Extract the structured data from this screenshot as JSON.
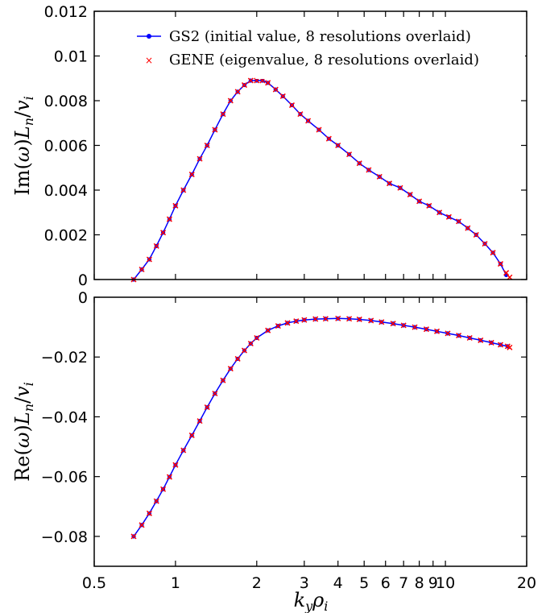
{
  "chart_data": [
    {
      "type": "line",
      "ylabel": "Im(ω)L_n/v_i",
      "xscale": "log",
      "xlim": [
        0.5,
        20
      ],
      "ylim": [
        0,
        0.012
      ],
      "xticks": [
        0.5,
        1,
        2,
        3,
        4,
        5,
        6,
        7,
        8,
        9,
        10,
        20
      ],
      "xtick_labels": [
        "0.5",
        "1",
        "2",
        "3",
        "4",
        "5",
        "6",
        "7",
        "8",
        "9",
        "10",
        "20"
      ],
      "yticks": [
        0,
        0.002,
        0.004,
        0.006,
        0.008,
        0.01,
        0.012
      ],
      "ytick_labels": [
        "0",
        "0.002",
        "0.004",
        "0.006",
        "0.008",
        "0.01",
        "0.012"
      ],
      "legend": {
        "position": "top-right",
        "entries": [
          {
            "label": "GS2 (initial value, 8 resolutions overlaid)",
            "color": "#0000ff",
            "marker": "dot-line"
          },
          {
            "label": "GENE (eigenvalue, 8 resolutions overlaid)",
            "color": "#ff0000",
            "marker": "x"
          }
        ]
      },
      "series": [
        {
          "name": "GS2 (initial value, 8 resolutions overlaid)",
          "color": "#0000ff",
          "x": [
            0.7,
            0.75,
            0.8,
            0.85,
            0.9,
            0.95,
            1.0,
            1.07,
            1.15,
            1.23,
            1.31,
            1.4,
            1.5,
            1.6,
            1.7,
            1.8,
            1.9,
            2.0,
            2.1,
            2.2,
            2.35,
            2.5,
            2.7,
            2.9,
            3.1,
            3.4,
            3.7,
            4.0,
            4.4,
            4.8,
            5.2,
            5.7,
            6.2,
            6.8,
            7.4,
            8.0,
            8.7,
            9.5,
            10.3,
            11.2,
            12.1,
            13.0,
            14.0,
            15.0,
            16.0,
            16.8
          ],
          "y": [
            0.0,
            0.00045,
            0.0009,
            0.0015,
            0.0021,
            0.0027,
            0.0033,
            0.004,
            0.0047,
            0.0054,
            0.006,
            0.0067,
            0.0074,
            0.008,
            0.0084,
            0.0087,
            0.0089,
            0.0089,
            0.0089,
            0.0088,
            0.0085,
            0.0082,
            0.0078,
            0.0074,
            0.0071,
            0.0067,
            0.0063,
            0.006,
            0.0056,
            0.0052,
            0.0049,
            0.0046,
            0.0043,
            0.0041,
            0.0038,
            0.0035,
            0.0033,
            0.003,
            0.0028,
            0.0026,
            0.0023,
            0.002,
            0.0016,
            0.0012,
            0.0007,
            0.0002
          ]
        },
        {
          "name": "GENE (eigenvalue, 8 resolutions overlaid)",
          "color": "#ff0000",
          "x": [
            0.7,
            0.75,
            0.8,
            0.85,
            0.9,
            0.95,
            1.0,
            1.07,
            1.15,
            1.23,
            1.31,
            1.4,
            1.5,
            1.6,
            1.7,
            1.8,
            1.9,
            2.0,
            2.1,
            2.2,
            2.35,
            2.5,
            2.7,
            2.9,
            3.1,
            3.4,
            3.7,
            4.0,
            4.4,
            4.8,
            5.2,
            5.7,
            6.2,
            6.8,
            7.4,
            8.0,
            8.7,
            9.5,
            10.3,
            11.2,
            12.1,
            13.0,
            14.0,
            15.0,
            16.0,
            16.8,
            17.3
          ],
          "y": [
            0.0,
            0.00045,
            0.0009,
            0.0015,
            0.0021,
            0.0027,
            0.0033,
            0.004,
            0.0047,
            0.0054,
            0.006,
            0.0067,
            0.0074,
            0.008,
            0.0084,
            0.0087,
            0.0089,
            0.0089,
            0.0089,
            0.0088,
            0.0085,
            0.0082,
            0.0078,
            0.0074,
            0.0071,
            0.0067,
            0.0063,
            0.006,
            0.0056,
            0.0052,
            0.0049,
            0.0046,
            0.0043,
            0.0041,
            0.0038,
            0.0035,
            0.0033,
            0.003,
            0.0028,
            0.0026,
            0.0023,
            0.002,
            0.0016,
            0.0012,
            0.0007,
            0.0003,
            0.0001
          ]
        }
      ]
    },
    {
      "type": "line",
      "xlabel": "k_y ρ_i",
      "ylabel": "Re(ω)L_n/v_i",
      "xscale": "log",
      "xlim": [
        0.5,
        20
      ],
      "ylim": [
        -0.09,
        0
      ],
      "xticks": [
        0.5,
        1,
        2,
        3,
        4,
        5,
        6,
        7,
        8,
        9,
        10,
        20
      ],
      "xtick_labels": [
        "0.5",
        "1",
        "2",
        "3",
        "4",
        "5",
        "6",
        "7",
        "8",
        "9",
        "10",
        "20"
      ],
      "yticks": [
        0,
        -0.02,
        -0.04,
        -0.06,
        -0.08
      ],
      "ytick_labels": [
        "0",
        "−0.02",
        "−0.04",
        "−0.06",
        "−0.08"
      ],
      "series": [
        {
          "name": "GS2 (initial value, 8 resolutions overlaid)",
          "color": "#0000ff",
          "x": [
            0.7,
            0.75,
            0.8,
            0.85,
            0.9,
            0.95,
            1.0,
            1.07,
            1.15,
            1.23,
            1.31,
            1.4,
            1.5,
            1.6,
            1.7,
            1.8,
            1.9,
            2.0,
            2.2,
            2.4,
            2.6,
            2.8,
            3.0,
            3.3,
            3.6,
            4.0,
            4.4,
            4.8,
            5.3,
            5.8,
            6.4,
            7.0,
            7.7,
            8.5,
            9.3,
            10.2,
            11.2,
            12.3,
            13.5,
            14.8,
            16.0,
            17.0
          ],
          "y": [
            -0.08,
            -0.0762,
            -0.0723,
            -0.0682,
            -0.0642,
            -0.0601,
            -0.0561,
            -0.0512,
            -0.0462,
            -0.0414,
            -0.0368,
            -0.0322,
            -0.0278,
            -0.0239,
            -0.0206,
            -0.0178,
            -0.0155,
            -0.0136,
            -0.0111,
            -0.0096,
            -0.0086,
            -0.008,
            -0.0076,
            -0.0073,
            -0.0072,
            -0.0071,
            -0.0072,
            -0.0074,
            -0.0078,
            -0.0083,
            -0.0088,
            -0.0094,
            -0.01,
            -0.0107,
            -0.0114,
            -0.0121,
            -0.0128,
            -0.0136,
            -0.0144,
            -0.0152,
            -0.0159,
            -0.0164
          ]
        },
        {
          "name": "GENE (eigenvalue, 8 resolutions overlaid)",
          "color": "#ff0000",
          "x": [
            0.7,
            0.75,
            0.8,
            0.85,
            0.9,
            0.95,
            1.0,
            1.07,
            1.15,
            1.23,
            1.31,
            1.4,
            1.5,
            1.6,
            1.7,
            1.8,
            1.9,
            2.0,
            2.2,
            2.4,
            2.6,
            2.8,
            3.0,
            3.3,
            3.6,
            4.0,
            4.4,
            4.8,
            5.3,
            5.8,
            6.4,
            7.0,
            7.7,
            8.5,
            9.3,
            10.2,
            11.2,
            12.3,
            13.5,
            14.8,
            16.0,
            17.0,
            17.3
          ],
          "y": [
            -0.08,
            -0.0762,
            -0.0723,
            -0.0682,
            -0.0642,
            -0.0601,
            -0.0561,
            -0.0512,
            -0.0462,
            -0.0414,
            -0.0368,
            -0.0322,
            -0.0278,
            -0.0239,
            -0.0206,
            -0.0178,
            -0.0155,
            -0.0136,
            -0.0111,
            -0.0096,
            -0.0086,
            -0.008,
            -0.0076,
            -0.0073,
            -0.0072,
            -0.0071,
            -0.0072,
            -0.0074,
            -0.0078,
            -0.0083,
            -0.0088,
            -0.0094,
            -0.01,
            -0.0107,
            -0.0114,
            -0.0121,
            -0.0128,
            -0.0136,
            -0.0144,
            -0.0152,
            -0.0159,
            -0.0164,
            -0.0168
          ]
        }
      ]
    }
  ]
}
